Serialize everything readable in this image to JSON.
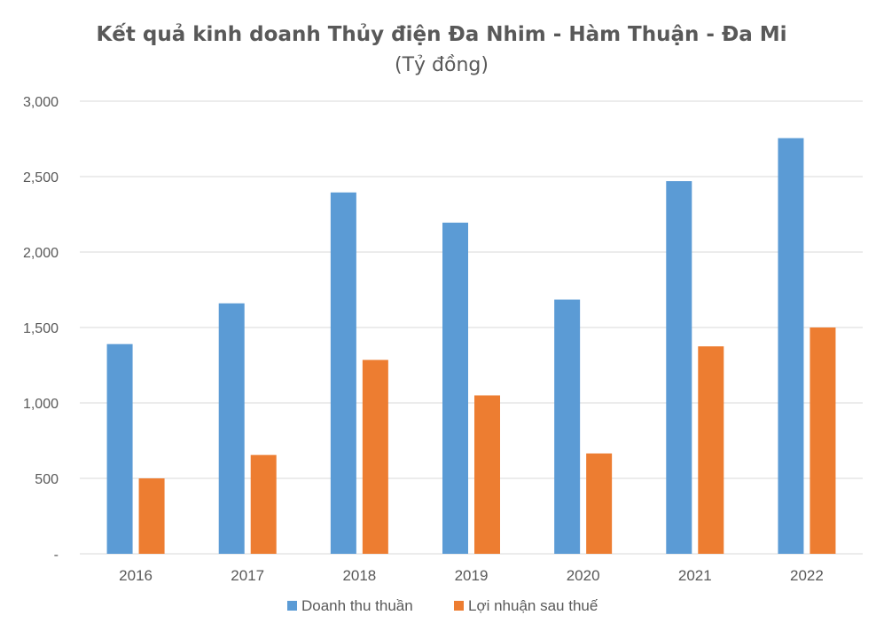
{
  "chart_data": {
    "type": "bar",
    "title": "Kết quả kinh doanh Thủy điện Đa Nhim - Hàm Thuận - Đa Mi",
    "subtitle": "(Tỷ đồng)",
    "categories": [
      "2016",
      "2017",
      "2018",
      "2019",
      "2020",
      "2021",
      "2022"
    ],
    "series": [
      {
        "name": "Doanh thu thuần",
        "color": "#5b9bd5",
        "values": [
          1390,
          1660,
          2395,
          2195,
          1685,
          2470,
          2755
        ]
      },
      {
        "name": "Lợi nhuận sau thuế",
        "color": "#ed7d31",
        "values": [
          500,
          655,
          1285,
          1050,
          665,
          1375,
          1500
        ]
      }
    ],
    "ylim": [
      0,
      3000
    ],
    "yticks": [
      0,
      500,
      1000,
      1500,
      2000,
      2500,
      3000
    ],
    "ytick_labels": [
      "-",
      "500",
      "1,000",
      "1,500",
      "2,000",
      "2,500",
      "3,000"
    ],
    "xlabel": "",
    "ylabel": "",
    "grid": true,
    "legend_position": "bottom"
  }
}
